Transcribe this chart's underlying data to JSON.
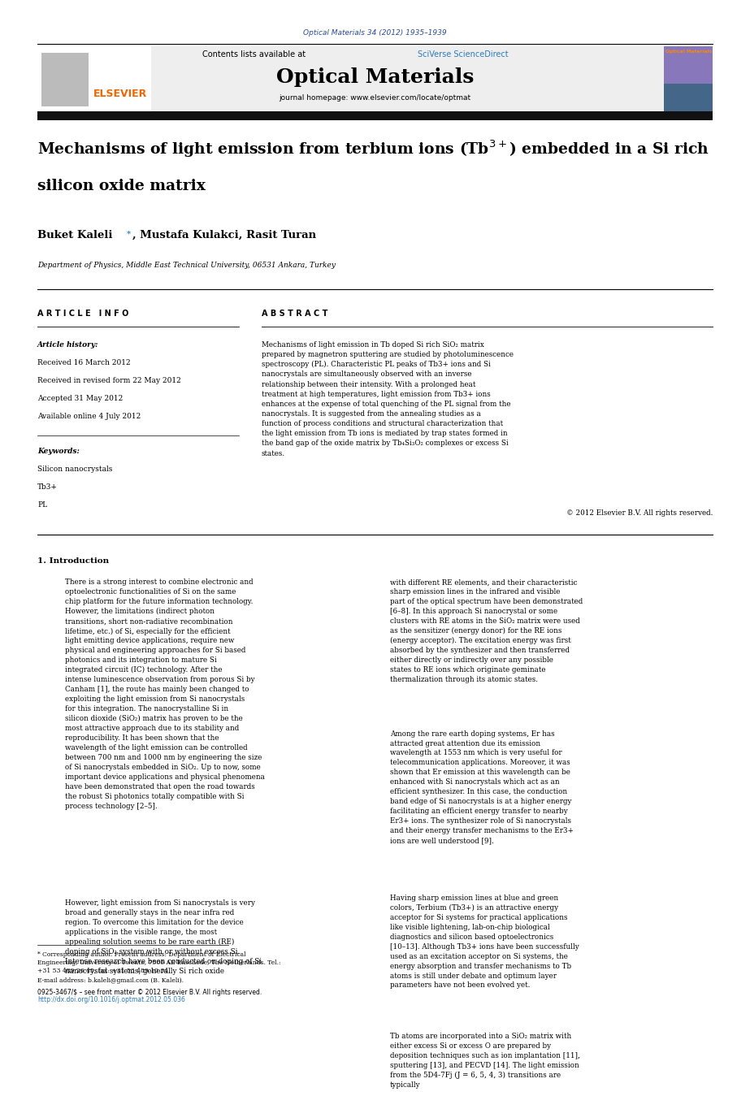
{
  "journal_ref": "Optical Materials 34 (2012) 1935–1939",
  "journal_ref_color": "#2b4d9c",
  "sciverse_color": "#2b7bbd",
  "journal_name": "Optical Materials",
  "journal_homepage": "journal homepage: www.elsevier.com/locate/optmat",
  "article_info_header": "A R T I C L E   I N F O",
  "article_history_header": "Article history:",
  "received1": "Received 16 March 2012",
  "received2": "Received in revised form 22 May 2012",
  "accepted": "Accepted 31 May 2012",
  "available": "Available online 4 July 2012",
  "keywords_header": "Keywords:",
  "keywords": [
    "Silicon nanocrystals",
    "Tb3+",
    "PL"
  ],
  "abstract_header": "A B S T R A C T",
  "abstract_text": "Mechanisms of light emission in Tb doped Si rich SiO₂ matrix prepared by magnetron sputtering are studied by photoluminescence spectroscopy (PL). Characteristic PL peaks of Tb3+ ions and Si nanocrystals are simultaneously observed with an inverse relationship between their intensity. With a prolonged heat treatment at high temperatures, light emission from Tb3+ ions enhances at the expense of total quenching of the PL signal from the nanocrystals. It is suggested from the annealing studies as a function of process conditions and structural characterization that the light emission from Tb ions is mediated by trap states formed in the band gap of the oxide matrix by Tb₄Si₃O₂ complexes or excess Si states.",
  "copyright": "© 2012 Elsevier B.V. All rights reserved.",
  "affiliation": "Department of Physics, Middle East Technical University, 06531 Ankara, Turkey",
  "section1_header": "1. Introduction",
  "intro_para1": "There is a strong interest to combine electronic and optoelectronic functionalities of Si on the same chip platform for the future information technology. However, the limitations (indirect photon transitions, short non-radiative recombination lifetime, etc.) of Si, especially for the efficient light emitting device applications, require new physical and engineering approaches for Si based photonics and its integration to mature Si integrated circuit (IC) technology. After the intense luminescence observation from porous Si by Canham [1], the route has mainly been changed to exploiting the light emission from Si nanocrystals for this integration. The nanocrystalline Si in silicon dioxide (SiO₂) matrix has proven to be the most attractive approach due to its stability and reproducibility. It has been shown that the wavelength of the light emission can be controlled between 700 nm and 1000 nm by engineering the size of Si nanocrystals embedded in SiO₂. Up to now, some important device applications and physical phenomena have been demonstrated that open the road towards the robust Si photonics totally compatible with Si process technology [2–5].",
  "intro_para2": "However, light emission from Si nanocrystals is very broad and generally stays in the near infra red region. To overcome this limitation for the device applications in the visible range, the most appealing solution seems to be rare earth (RE) doping of SiO₂ system with or without excess Si. Intense research have been conducted on doping of Si nanocrystal systems, generally Si rich oxide",
  "right_col_para1": "with different RE elements, and their characteristic sharp emission lines in the infrared and visible part of the optical spectrum have been demonstrated [6–8]. In this approach Si nanocrystal or some clusters with RE atoms in the SiO₂ matrix were used as the sensitizer (energy donor) for the RE ions (energy acceptor). The excitation energy was first absorbed by the synthesizer and then transferred either directly or indirectly over any possible states to RE ions which originate geminate thermalization through its atomic states.",
  "right_col_para2": "Among the rare earth doping systems, Er has attracted great attention due its emission wavelength at 1553 nm which is very useful for telecommunication applications. Moreover, it was shown that Er emission at this wavelength can be enhanced with Si nanocrystals which act as an efficient synthesizer. In this case, the conduction band edge of Si nanocrystals is at a higher energy facilitating an efficient energy transfer to nearby Er3+ ions. The synthesizer role of Si nanocrystals and their energy transfer mechanisms to the Er3+ ions are well understood [9].",
  "right_col_para3": "Having sharp emission lines at blue and green colors, Terbium (Tb3+) is an attractive energy acceptor for Si systems for practical applications like visible lightening, lab-on-chip biological diagnostics and silicon based optoelectronics [10–13]. Although Tb3+ ions have been successfully used as an excitation acceptor on Si systems, the energy absorption and transfer mechanisms to Tb atoms is still under debate and optimum layer parameters have not been evolved yet.",
  "right_col_para4": "Tb atoms are incorporated into a SiO₂ matrix with either excess Si or excess O are prepared by deposition techniques such as ion implantation [11], sputtering [13], and PECVD [14]. The light emission from the 5D4-7Fj (J = 6, 5, 4, 3) transitions are typically",
  "footnote1": "* Corresponding author. Present address: Department of Electrical Engineering, University of Twente, 7500 AE Enschede, The Netherlands. Tel.: +31 53 489 26 45; fax: +31 53 489 10 34.",
  "footnote_email": "E-mail address: b.kaleli@gmail.com (B. Kaleli).",
  "footer_left": "0925-3467/$ – see front matter © 2012 Elsevier B.V. All rights reserved.",
  "footer_doi": "http://dx.doi.org/10.1016/j.optmat.2012.05.036",
  "bg_color": "#ffffff",
  "link_color": "#2b7bbd",
  "text_color": "#000000"
}
